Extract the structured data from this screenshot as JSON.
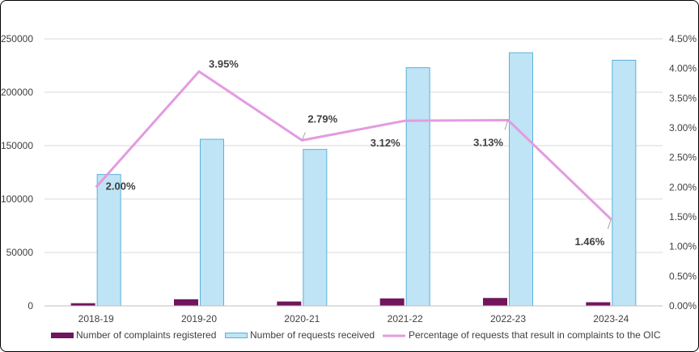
{
  "chart_data": {
    "type": "bar",
    "categories": [
      "2018-19",
      "2019-20",
      "2020-21",
      "2021-22",
      "2022-23",
      "2023-24"
    ],
    "series": [
      {
        "name": "Number of complaints registered",
        "type": "bar",
        "axis": "left",
        "color": "#70155e",
        "values": [
          2500,
          6200,
          4100,
          7000,
          7400,
          3400
        ]
      },
      {
        "name": "Number of requests received",
        "type": "bar",
        "axis": "left",
        "color": "#bfe4f5",
        "stroke": "#5bb0dc",
        "values": [
          123000,
          156000,
          146500,
          223000,
          237000,
          230000
        ]
      },
      {
        "name": "Percentage of requests that result in complaints to the OIC",
        "type": "line",
        "axis": "right",
        "color": "#e39be0",
        "values": [
          2.0,
          3.95,
          2.79,
          3.12,
          3.13,
          1.46
        ],
        "labels": [
          "2.00%",
          "3.95%",
          "2.79%",
          "3.12%",
          "3.13%",
          "1.46%"
        ]
      }
    ],
    "y_left": {
      "ylim": [
        0,
        250000
      ],
      "ticks": [
        0,
        50000,
        100000,
        150000,
        200000,
        250000
      ],
      "tick_labels": [
        "0",
        "50000",
        "100000",
        "150000",
        "200000",
        "250000"
      ]
    },
    "y_right": {
      "ylim": [
        0,
        4.5
      ],
      "ticks": [
        0,
        0.5,
        1,
        1.5,
        2,
        2.5,
        3,
        3.5,
        4,
        4.5
      ],
      "tick_labels": [
        "0.00%",
        "0.50%",
        "1.00%",
        "1.50%",
        "2.00%",
        "2.50%",
        "3.00%",
        "3.50%",
        "4.00%",
        "4.50%"
      ]
    },
    "grid": true,
    "legend_position": "bottom",
    "title": "",
    "xlabel": "",
    "ylabel": ""
  }
}
